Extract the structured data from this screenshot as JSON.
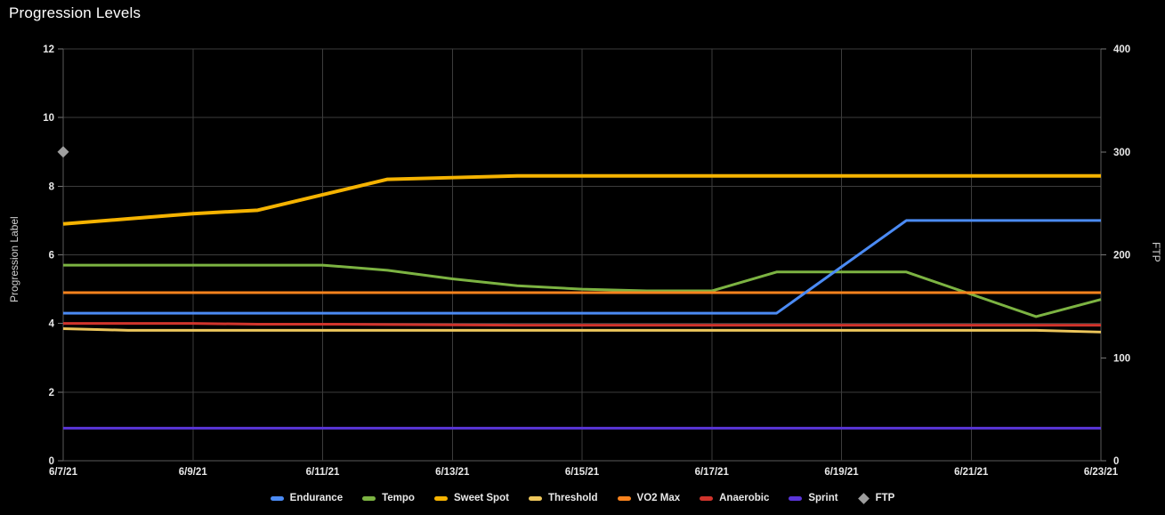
{
  "title": "Progression Levels",
  "chart_data": {
    "type": "line",
    "x": [
      "6/7/21",
      "6/8/21",
      "6/9/21",
      "6/10/21",
      "6/11/21",
      "6/12/21",
      "6/13/21",
      "6/14/21",
      "6/15/21",
      "6/16/21",
      "6/17/21",
      "6/18/21",
      "6/19/21",
      "6/20/21",
      "6/21/21",
      "6/22/21",
      "6/23/21"
    ],
    "x_tick_labels": [
      "6/7/21",
      "6/9/21",
      "6/11/21",
      "6/13/21",
      "6/15/21",
      "6/17/21",
      "6/19/21",
      "6/21/21",
      "6/23/21"
    ],
    "left_axis": {
      "title": "Progression Label",
      "ticks": [
        0,
        2,
        4,
        6,
        8,
        10,
        12
      ],
      "range": [
        0,
        12
      ]
    },
    "right_axis": {
      "title": "FTP",
      "ticks": [
        0,
        100,
        200,
        300,
        400
      ],
      "range": [
        0,
        400
      ]
    },
    "grid": true,
    "legend_position": "bottom",
    "series": [
      {
        "name": "Endurance",
        "color": "#4b8bf4",
        "axis": "left",
        "width": 3,
        "values": [
          4.3,
          4.3,
          4.3,
          4.3,
          4.3,
          4.3,
          4.3,
          4.3,
          4.3,
          4.3,
          4.3,
          4.3,
          5.65,
          7.0,
          7.0,
          7.0,
          7.0
        ]
      },
      {
        "name": "Tempo",
        "color": "#7cb342",
        "axis": "left",
        "width": 3,
        "values": [
          5.7,
          5.7,
          5.7,
          5.7,
          5.7,
          5.55,
          5.3,
          5.1,
          5.0,
          4.95,
          4.95,
          5.5,
          5.5,
          5.5,
          4.85,
          4.2,
          4.7
        ]
      },
      {
        "name": "Sweet Spot",
        "color": "#f5b301",
        "axis": "left",
        "width": 4,
        "values": [
          6.9,
          7.05,
          7.2,
          7.3,
          7.75,
          8.2,
          8.25,
          8.3,
          8.3,
          8.3,
          8.3,
          8.3,
          8.3,
          8.3,
          8.3,
          8.3,
          8.3
        ]
      },
      {
        "name": "Threshold",
        "color": "#edc65b",
        "axis": "left",
        "width": 3,
        "values": [
          3.85,
          3.8,
          3.8,
          3.8,
          3.8,
          3.8,
          3.8,
          3.8,
          3.8,
          3.8,
          3.8,
          3.8,
          3.8,
          3.8,
          3.8,
          3.8,
          3.75
        ]
      },
      {
        "name": "VO2 Max",
        "color": "#f8821d",
        "axis": "left",
        "width": 3,
        "values": [
          4.9,
          4.9,
          4.9,
          4.9,
          4.9,
          4.9,
          4.9,
          4.9,
          4.9,
          4.9,
          4.9,
          4.9,
          4.9,
          4.9,
          4.9,
          4.9,
          4.9
        ]
      },
      {
        "name": "Anaerobic",
        "color": "#d0342c",
        "axis": "left",
        "width": 3,
        "values": [
          4.0,
          4.0,
          4.0,
          3.98,
          3.98,
          3.97,
          3.96,
          3.95,
          3.95,
          3.95,
          3.95,
          3.95,
          3.95,
          3.95,
          3.95,
          3.95,
          3.95
        ]
      },
      {
        "name": "Sprint",
        "color": "#5a35d8",
        "axis": "left",
        "width": 3,
        "values": [
          0.95,
          0.95,
          0.95,
          0.95,
          0.95,
          0.95,
          0.95,
          0.95,
          0.95,
          0.95,
          0.95,
          0.95,
          0.95,
          0.95,
          0.95,
          0.95,
          0.95
        ]
      }
    ],
    "scatter": [
      {
        "name": "FTP",
        "color": "#9e9e9e",
        "axis": "right",
        "marker": "diamond",
        "points": [
          {
            "x": "6/7/21",
            "y": 300
          }
        ]
      }
    ]
  },
  "colors": {
    "background": "#000000",
    "grid": "#3c3c3c",
    "frame": "#5a5a5a",
    "tick_text": "#e8e8e8",
    "axis_title_text": "#cfcfcf"
  }
}
